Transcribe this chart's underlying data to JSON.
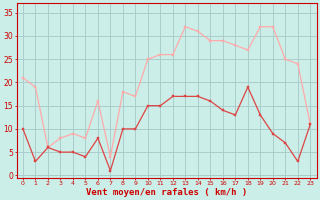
{
  "hours": [
    0,
    1,
    2,
    3,
    4,
    5,
    6,
    7,
    8,
    9,
    10,
    11,
    12,
    13,
    14,
    15,
    16,
    17,
    18,
    19,
    20,
    21,
    22,
    23
  ],
  "wind_avg": [
    10,
    3,
    6,
    5,
    5,
    4,
    8,
    1,
    10,
    10,
    15,
    15,
    17,
    17,
    17,
    16,
    14,
    13,
    19,
    13,
    9,
    7,
    3,
    11
  ],
  "wind_gust": [
    21,
    19,
    6,
    8,
    9,
    8,
    16,
    4,
    18,
    17,
    25,
    26,
    26,
    32,
    31,
    29,
    29,
    28,
    27,
    32,
    32,
    25,
    24,
    11
  ],
  "avg_color": "#dd4444",
  "gust_color": "#ffaaaa",
  "bg_color": "#cceee8",
  "grid_color": "#aacccc",
  "axis_color": "#cc0000",
  "xlabel": "Vent moyen/en rafales ( km/h )",
  "yticks": [
    0,
    5,
    10,
    15,
    20,
    25,
    30,
    35
  ],
  "ylim": [
    -0.5,
    37
  ],
  "xlim": [
    -0.5,
    23.5
  ]
}
